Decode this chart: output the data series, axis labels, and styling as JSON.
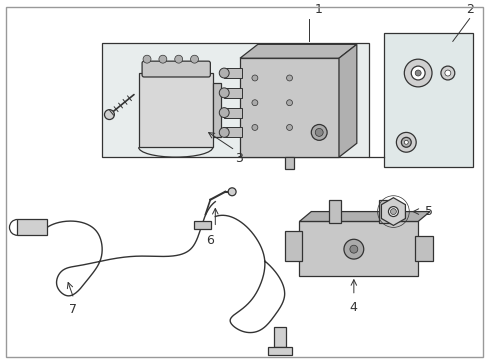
{
  "bg_color": "#ffffff",
  "line_color": "#333333",
  "fill_bracket": "#e0e8e8",
  "fill_plate": "#e0e8e8",
  "fill_part": "#d0d0d0",
  "figsize": [
    4.89,
    3.6
  ],
  "dpi": 100
}
